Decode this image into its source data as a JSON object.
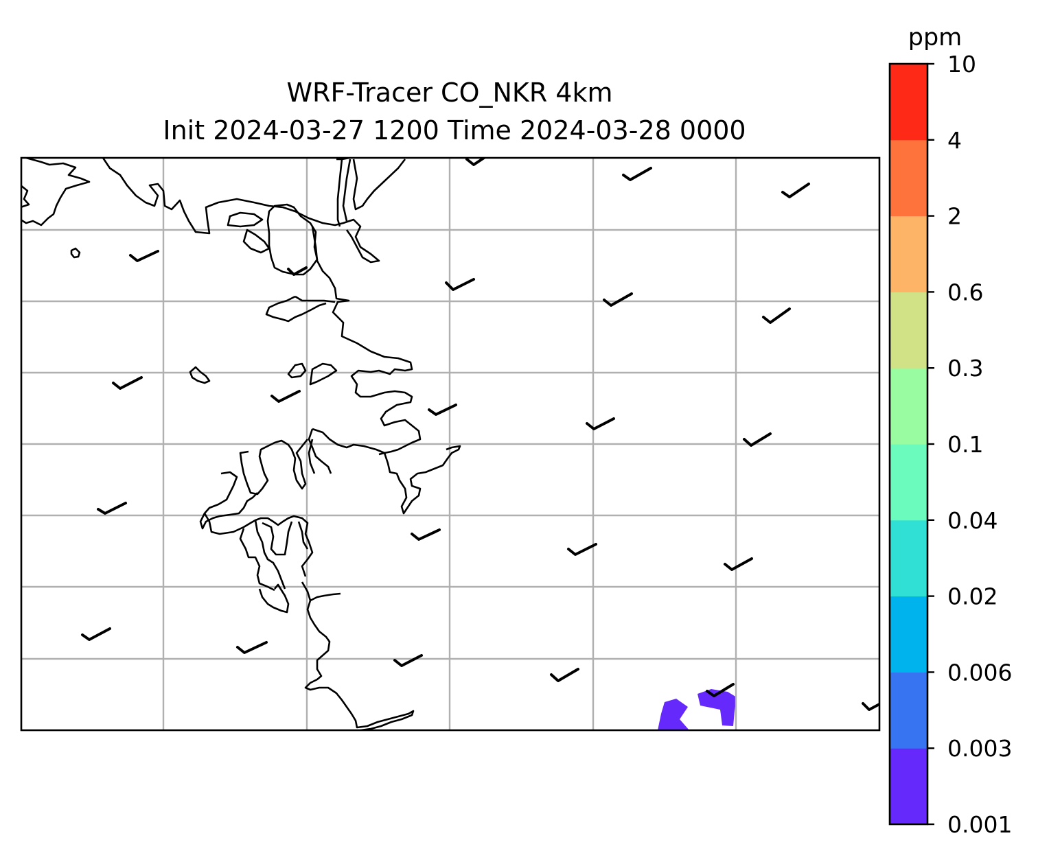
{
  "title": {
    "line1": "WRF-Tracer CO_NKR 4km",
    "line2": "Init 2024-03-27 1200 Time 2024-03-28 0000"
  },
  "colorbar": {
    "unit": "ppm",
    "levels": [
      "0.001",
      "0.003",
      "0.006",
      "0.02",
      "0.04",
      "0.1",
      "0.3",
      "0.6",
      "2",
      "4",
      "10"
    ],
    "colors": [
      "#6629fc",
      "#3674f2",
      "#00b3ec",
      "#31e0d4",
      "#6bfcbd",
      "#9afca1",
      "#d0e186",
      "#fdb466",
      "#fe733c",
      "#fe2a17"
    ]
  },
  "map": {
    "gridlines": true,
    "coastlines": true,
    "wind_barbs": "light winds from the southwest, plotted on a regular grid",
    "tracer_field": {
      "visible_levels": [
        "0.001–0.003 ppm"
      ],
      "location": "bottom center-right of map"
    }
  }
}
